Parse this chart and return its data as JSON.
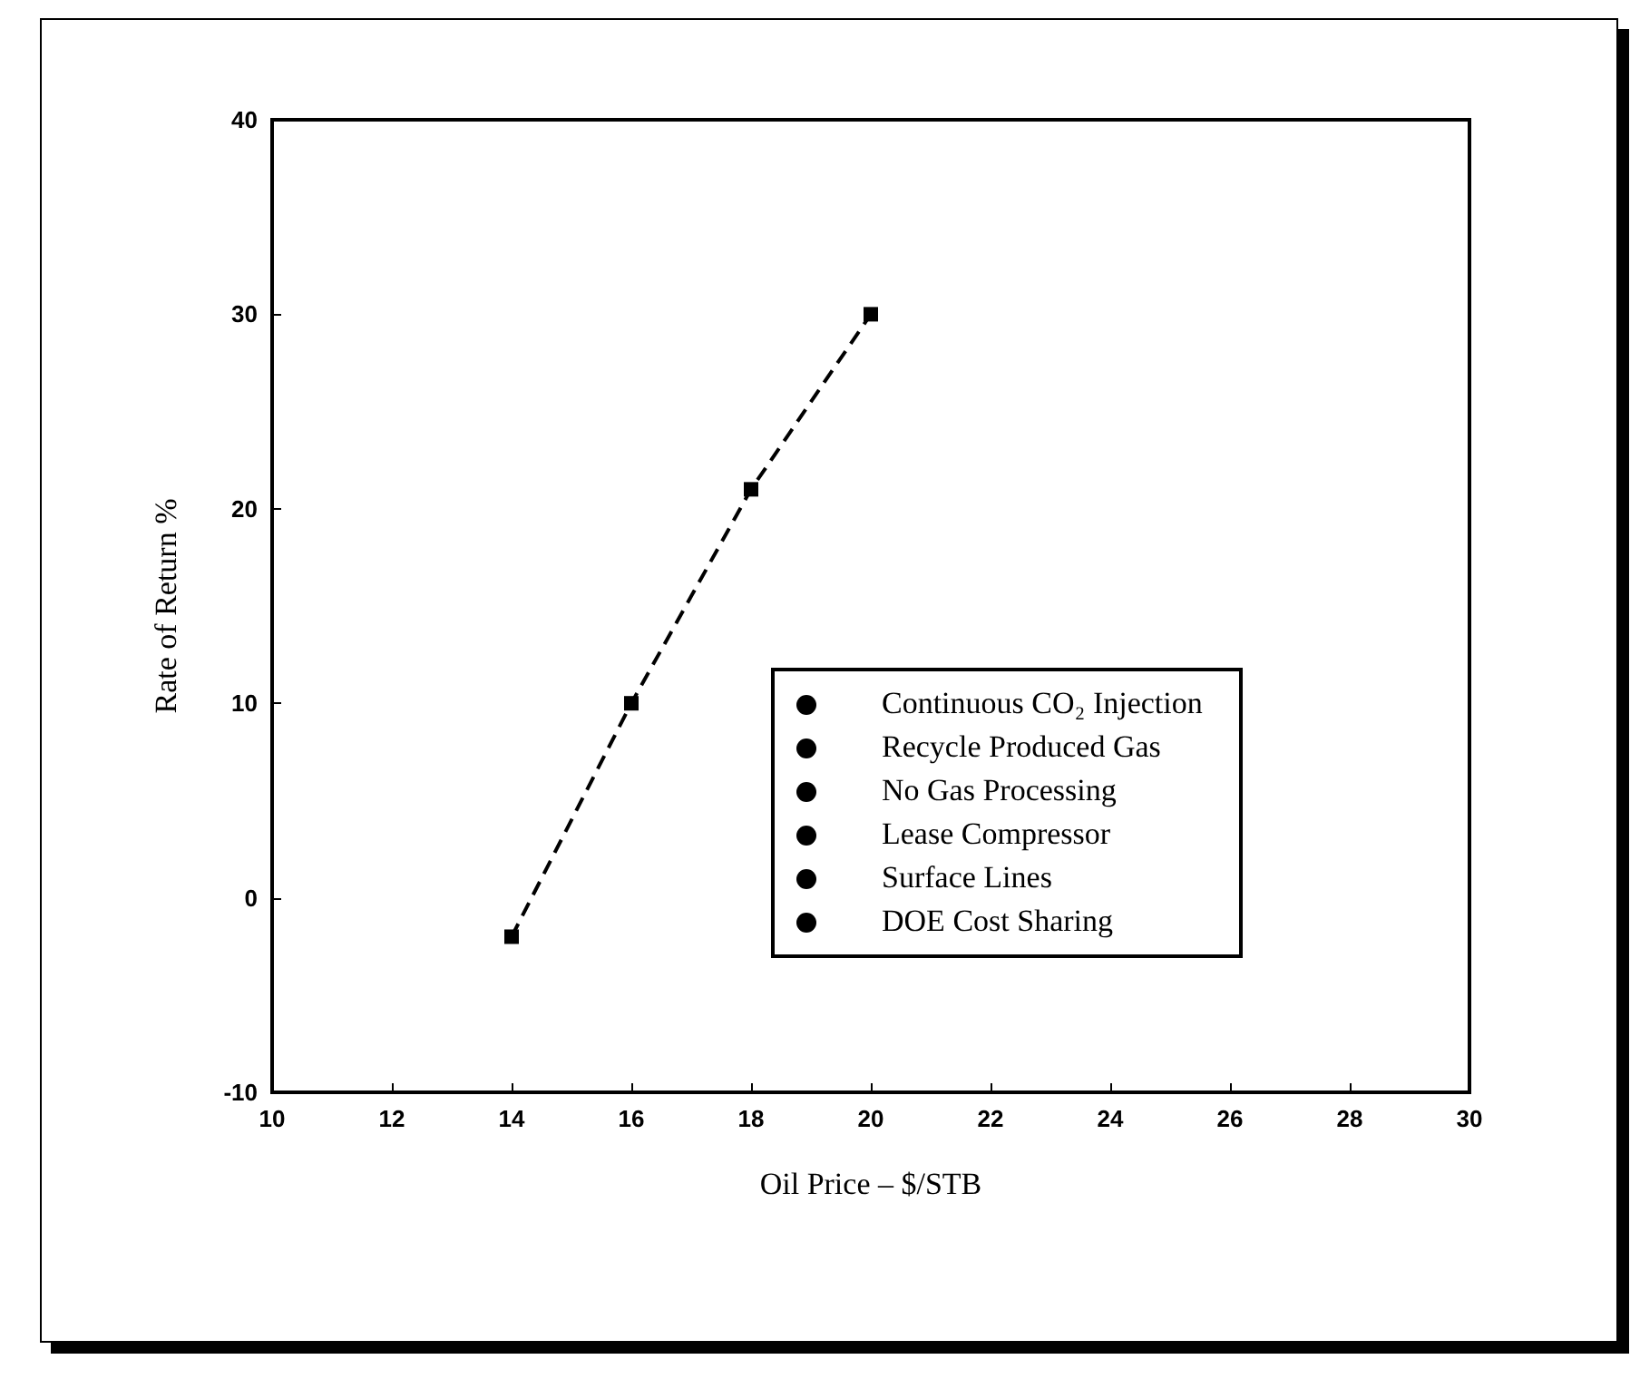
{
  "chart_data": {
    "type": "line",
    "xlabel": "Oil Price – $/STB",
    "ylabel": "Rate of Return %",
    "x": [
      14,
      16,
      18,
      20
    ],
    "series": [
      {
        "color": "#000000",
        "values": [
          -2,
          10,
          21,
          30
        ]
      }
    ],
    "xlim": [
      10,
      30
    ],
    "xticks": [
      10,
      12,
      14,
      16,
      18,
      20,
      22,
      24,
      26,
      28,
      30
    ],
    "ylim": [
      -10,
      40
    ],
    "yticks": [
      -10,
      0,
      10,
      20,
      30,
      40
    ],
    "marker": "square",
    "line_style": "dashed",
    "grid": false,
    "annotations": [
      "Continuous CO₂ Injection",
      "Recycle Produced Gas",
      "No Gas Processing",
      "Lease Compressor",
      "Surface Lines",
      "DOE Cost Sharing"
    ]
  }
}
